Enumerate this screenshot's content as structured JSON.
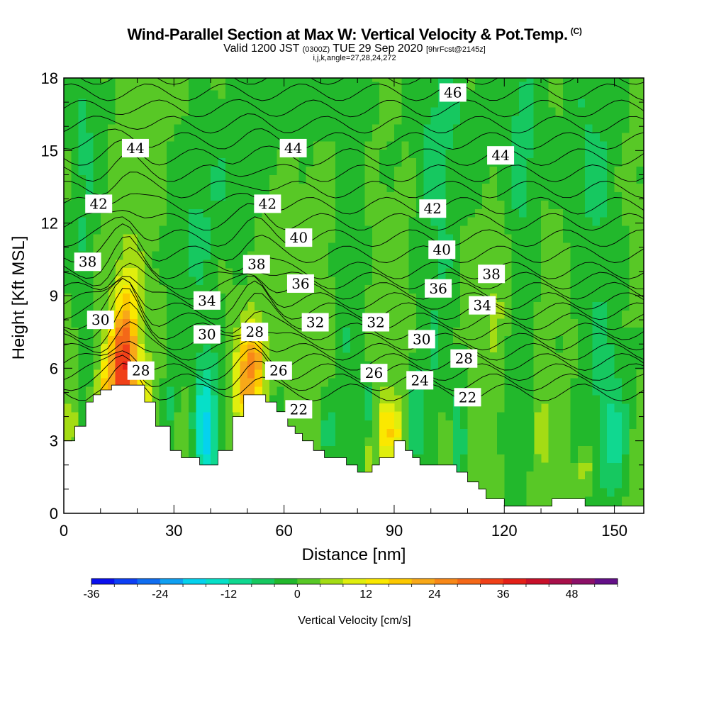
{
  "header": {
    "title": "Wind-Parallel Section at Max W: Vertical Velocity & Pot.Temp.",
    "title_mark": "(C)",
    "valid_prefix": "Valid 1200 JST",
    "valid_utc": "(0300Z)",
    "valid_date": "TUE 29 Sep 2020",
    "forecast_note": "[9hrFcst@2145z]",
    "indices": "i,j,k,angle=27,28,24,272"
  },
  "chart_data": {
    "type": "heatmap",
    "xlabel": "Distance [nm]",
    "ylabel": "Height [Kft MSL]",
    "xlim": [
      0,
      158
    ],
    "ylim": [
      0,
      18
    ],
    "x_ticks": [
      0,
      30,
      60,
      90,
      120,
      150
    ],
    "y_ticks": [
      0,
      3,
      6,
      9,
      12,
      15,
      18
    ],
    "fill_variable": "Vertical Velocity [cm/s]",
    "colorbar": {
      "label": "Vertical Velocity [cm/s]",
      "min": -36,
      "max": 48,
      "step": 4,
      "tick_values": [
        -36,
        -24,
        -12,
        0,
        12,
        24,
        36,
        48
      ],
      "colors": [
        "#0a10ee",
        "#0d3ff5",
        "#0f6df0",
        "#10a0f2",
        "#05d2ee",
        "#06e0c8",
        "#10d890",
        "#16c860",
        "#22b82c",
        "#58c826",
        "#a4dc14",
        "#e0ee0e",
        "#fae800",
        "#fcc800",
        "#f8a818",
        "#f88818",
        "#f46818",
        "#f04018",
        "#e42018",
        "#c8102a",
        "#a8104a",
        "#8c1068",
        "#641088"
      ]
    },
    "contour_variable": "Potential Temperature (C)",
    "theta_labels": [
      {
        "value": "46",
        "x": 106,
        "y": 17.4
      },
      {
        "value": "44",
        "x": 19.5,
        "y": 15.1
      },
      {
        "value": "44",
        "x": 62.5,
        "y": 15.1
      },
      {
        "value": "44",
        "x": 119,
        "y": 14.8
      },
      {
        "value": "42",
        "x": 9.5,
        "y": 12.8
      },
      {
        "value": "42",
        "x": 55.5,
        "y": 12.8
      },
      {
        "value": "42",
        "x": 100.5,
        "y": 12.6
      },
      {
        "value": "40",
        "x": 64,
        "y": 11.4
      },
      {
        "value": "40",
        "x": 103,
        "y": 10.9
      },
      {
        "value": "38",
        "x": 6.5,
        "y": 10.4
      },
      {
        "value": "38",
        "x": 52.5,
        "y": 10.3
      },
      {
        "value": "38",
        "x": 116.5,
        "y": 9.9
      },
      {
        "value": "36",
        "x": 64.5,
        "y": 9.5
      },
      {
        "value": "36",
        "x": 102,
        "y": 9.3
      },
      {
        "value": "34",
        "x": 39,
        "y": 8.8
      },
      {
        "value": "34",
        "x": 114,
        "y": 8.6
      },
      {
        "value": "32",
        "x": 68.5,
        "y": 7.9
      },
      {
        "value": "32",
        "x": 85,
        "y": 7.9
      },
      {
        "value": "30",
        "x": 10,
        "y": 8.0
      },
      {
        "value": "30",
        "x": 39,
        "y": 7.4
      },
      {
        "value": "30",
        "x": 97.5,
        "y": 7.2
      },
      {
        "value": "28",
        "x": 52,
        "y": 7.5
      },
      {
        "value": "28",
        "x": 21,
        "y": 5.9
      },
      {
        "value": "28",
        "x": 109,
        "y": 6.4
      },
      {
        "value": "26",
        "x": 58.5,
        "y": 5.9
      },
      {
        "value": "26",
        "x": 84.5,
        "y": 5.8
      },
      {
        "value": "24",
        "x": 97,
        "y": 5.5
      },
      {
        "value": "22",
        "x": 64,
        "y": 4.3
      },
      {
        "value": "22",
        "x": 110,
        "y": 4.8
      }
    ]
  }
}
